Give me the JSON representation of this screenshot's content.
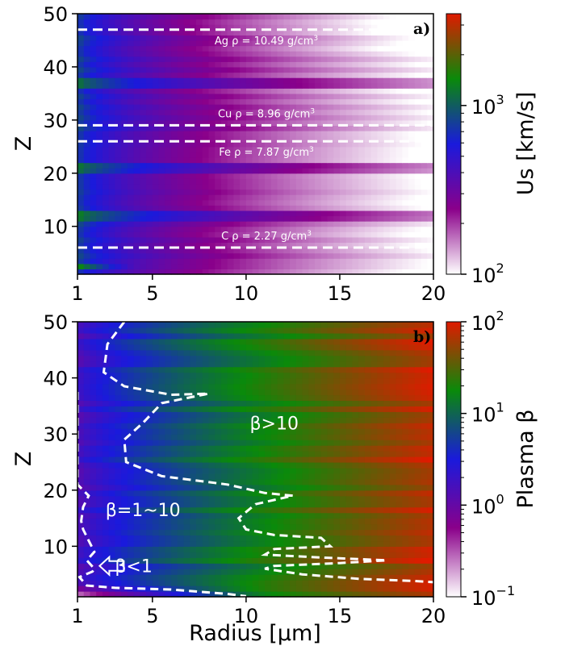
{
  "chart_data": [
    {
      "type": "heatmap",
      "panel_label": "a)",
      "xlabel": "",
      "ylabel": "Z",
      "xlim": [
        1,
        20
      ],
      "ylim": [
        1,
        50
      ],
      "xticks": [
        "1",
        "5",
        "10",
        "15",
        "20"
      ],
      "yticks": [
        "10",
        "20",
        "30",
        "40",
        "50"
      ],
      "colorbar": {
        "label": "Us [km/s]",
        "scale": "log",
        "range": [
          100,
          3500
        ],
        "ticks": [
          {
            "value": 100,
            "base": "10",
            "exp": "2"
          },
          {
            "value": 1000,
            "base": "10",
            "exp": "3"
          }
        ],
        "colors": [
          "#ffffff",
          "#8a008a",
          "#1a1adc",
          "#0a8a0a",
          "#e01a00"
        ]
      },
      "reference_lines": [
        {
          "z": 47,
          "label": "Ag ρ = 10.49 g/cm",
          "sup": "3",
          "label_pos": "below"
        },
        {
          "z": 29,
          "label": "Cu ρ = 8.96 g/cm",
          "sup": "3",
          "label_pos": "above"
        },
        {
          "z": 26,
          "label": "Fe ρ = 7.87 g/cm",
          "sup": "3",
          "label_pos": "below"
        },
        {
          "z": 6,
          "label": "C ρ = 2.27 g/cm",
          "sup": "3",
          "label_pos": "above"
        }
      ],
      "approx_values": {
        "description_z_bands": [
          [
            1,
            2,
            "low"
          ],
          [
            2,
            3,
            "mid"
          ],
          [
            11,
            13,
            "high"
          ],
          [
            20,
            22,
            "high"
          ],
          [
            36,
            38,
            "high"
          ]
        ],
        "radius_dependence": "Us decreases with radius: ~1500 km/s at r=1 to ~100 km/s at r=20"
      }
    },
    {
      "type": "heatmap",
      "panel_label": "b)",
      "xlabel": "Radius [μm]",
      "ylabel": "Z",
      "xlim": [
        1,
        20
      ],
      "ylim": [
        1,
        50
      ],
      "xticks": [
        "1",
        "5",
        "10",
        "15",
        "20"
      ],
      "yticks": [
        "10",
        "20",
        "30",
        "40",
        "50"
      ],
      "colorbar": {
        "label": "Plasma β",
        "scale": "log",
        "range": [
          0.1,
          100
        ],
        "ticks": [
          {
            "value": 0.1,
            "base": "10",
            "exp": "−1"
          },
          {
            "value": 1,
            "base": "10",
            "exp": "0"
          },
          {
            "value": 10,
            "base": "10",
            "exp": "1"
          },
          {
            "value": 100,
            "base": "10",
            "exp": "2"
          }
        ],
        "colors": [
          "#ffffff",
          "#8a008a",
          "#1a1adc",
          "#0a8a0a",
          "#e01a00"
        ]
      },
      "contours": [
        {
          "level": 1,
          "points": [
            [
              1,
              37.5
            ],
            [
              1,
              21
            ],
            [
              1.6,
              19
            ],
            [
              1.3,
              17
            ],
            [
              1.2,
              14.5
            ],
            [
              1.3,
              13
            ],
            [
              1.6,
              11
            ],
            [
              1.9,
              9
            ],
            [
              1.5,
              7.5
            ],
            [
              1.9,
              6
            ],
            [
              1.8,
              5.5
            ],
            [
              1.1,
              4.5
            ],
            [
              1.5,
              3
            ],
            [
              3,
              2.6
            ],
            [
              6,
              2.3
            ],
            [
              9,
              1.5
            ],
            [
              10,
              1.1
            ]
          ]
        },
        {
          "level": 10,
          "points": [
            [
              3.5,
              50
            ],
            [
              2.6,
              46
            ],
            [
              2.4,
              41
            ],
            [
              3.5,
              38.5
            ],
            [
              6,
              37
            ],
            [
              8,
              37.2
            ],
            [
              5.5,
              35.5
            ],
            [
              4.5,
              32
            ],
            [
              3.5,
              29
            ],
            [
              3.6,
              25
            ],
            [
              5.5,
              22.5
            ],
            [
              9,
              21
            ],
            [
              11,
              19.5
            ],
            [
              12.5,
              19
            ],
            [
              10.5,
              17.5
            ],
            [
              9.6,
              15
            ],
            [
              10,
              13
            ],
            [
              11.5,
              12
            ],
            [
              14,
              11.5
            ],
            [
              14.5,
              10
            ],
            [
              11.5,
              9.5
            ],
            [
              11,
              8.5
            ],
            [
              14,
              8
            ],
            [
              17.5,
              7.5
            ],
            [
              15,
              7
            ],
            [
              11.5,
              6.5
            ],
            [
              11,
              6
            ],
            [
              13,
              5
            ],
            [
              16,
              4.2
            ],
            [
              19,
              3.8
            ],
            [
              20,
              3.6
            ]
          ]
        }
      ],
      "region_labels": [
        {
          "text": "β>10",
          "r": 11.5,
          "z": 32
        },
        {
          "text": "β=1~10",
          "r": 4.5,
          "z": 16.5
        },
        {
          "text": "β<1",
          "r": 4.0,
          "z": 6.5
        }
      ],
      "approx_values": {
        "radius_dependence": "β increases with radius: ~1 at r=1 to ~100 at r=20",
        "low_beta_band": "β < 1 near Z = 1–4 at small radius"
      }
    }
  ]
}
